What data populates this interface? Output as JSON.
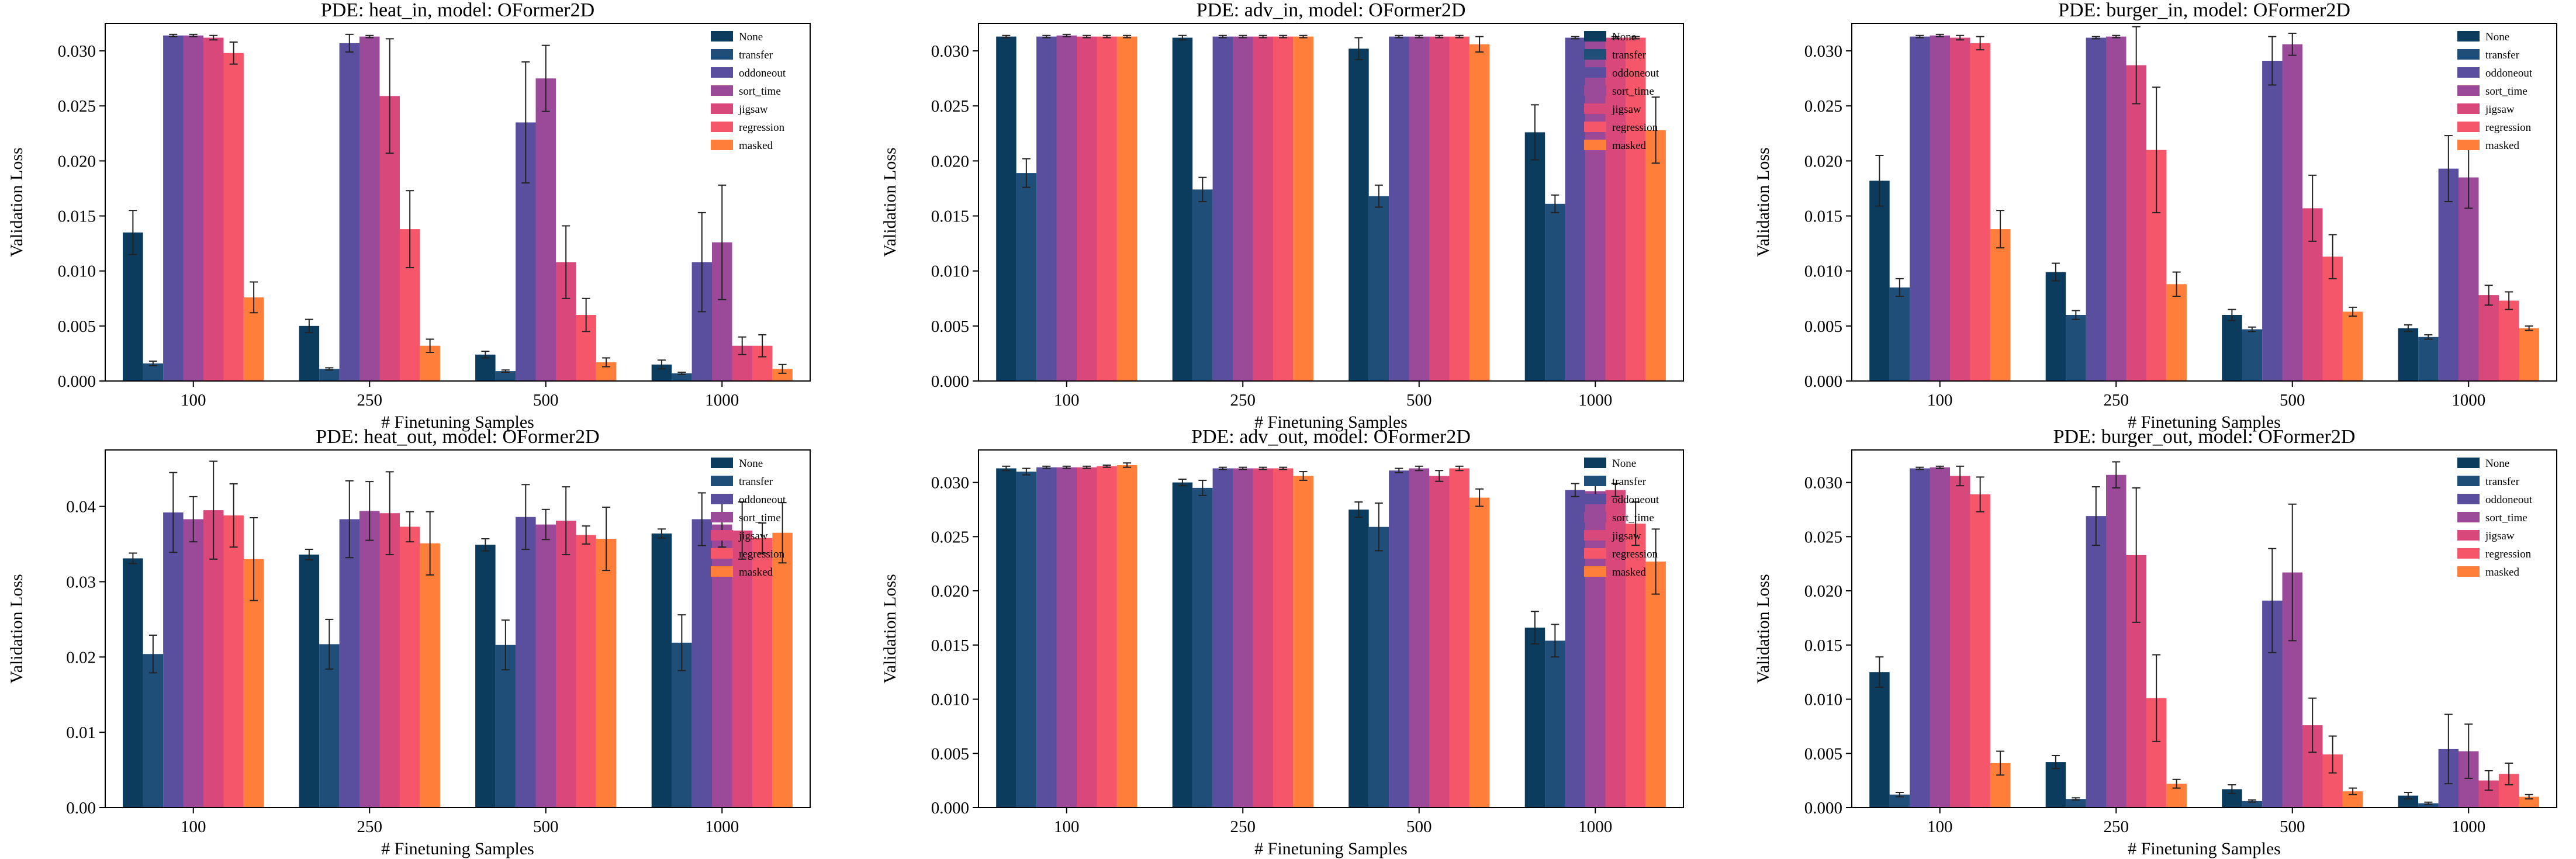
{
  "colors": {
    "None": "#0b3c5d",
    "transfer": "#1f4e79",
    "oddoneout": "#5a4f9e",
    "sort_time": "#9b4a9a",
    "jigsaw": "#d9487a",
    "regression": "#f6566a",
    "masked": "#ff7f3a"
  },
  "chart_data": [
    {
      "type": "bar",
      "title": "PDE: heat_in, model: OFormer2D",
      "xlabel": "# Finetuning Samples",
      "ylabel": "Validation Loss",
      "categories": [
        "100",
        "250",
        "500",
        "1000"
      ],
      "ylim": [
        0,
        0.0325
      ],
      "yticks": [
        "0.000",
        "0.005",
        "0.010",
        "0.015",
        "0.020",
        "0.025",
        "0.030"
      ],
      "legend_position": "top-right",
      "series": [
        {
          "name": "None",
          "values": [
            0.0135,
            0.005,
            0.0024,
            0.0015
          ],
          "errors": [
            0.002,
            0.0006,
            0.0003,
            0.0004
          ]
        },
        {
          "name": "transfer",
          "values": [
            0.0016,
            0.0011,
            0.0009,
            0.0007
          ],
          "errors": [
            0.0002,
            0.0001,
            0.0001,
            0.0001
          ]
        },
        {
          "name": "oddoneout",
          "values": [
            0.0314,
            0.0307,
            0.0235,
            0.0108
          ],
          "errors": [
            0.0001,
            0.0008,
            0.0055,
            0.0045
          ]
        },
        {
          "name": "sort_time",
          "values": [
            0.0314,
            0.0313,
            0.0275,
            0.0126
          ],
          "errors": [
            0.0001,
            0.0001,
            0.003,
            0.0052
          ]
        },
        {
          "name": "jigsaw",
          "values": [
            0.0312,
            0.0259,
            0.0108,
            0.0032
          ],
          "errors": [
            0.0002,
            0.0052,
            0.0033,
            0.0008
          ]
        },
        {
          "name": "regression",
          "values": [
            0.0298,
            0.0138,
            0.006,
            0.0032
          ],
          "errors": [
            0.001,
            0.0035,
            0.0015,
            0.001
          ]
        },
        {
          "name": "masked",
          "values": [
            0.0076,
            0.0032,
            0.0017,
            0.0011
          ],
          "errors": [
            0.0014,
            0.0006,
            0.0004,
            0.0004
          ]
        }
      ]
    },
    {
      "type": "bar",
      "title": "PDE: adv_in, model: OFormer2D",
      "xlabel": "# Finetuning Samples",
      "ylabel": "Validation Loss",
      "categories": [
        "100",
        "250",
        "500",
        "1000"
      ],
      "ylim": [
        0,
        0.0325
      ],
      "yticks": [
        "0.000",
        "0.005",
        "0.010",
        "0.015",
        "0.020",
        "0.025",
        "0.030"
      ],
      "legend_position": "top-right",
      "series": [
        {
          "name": "None",
          "values": [
            0.0313,
            0.0312,
            0.0302,
            0.0226
          ],
          "errors": [
            0.0001,
            0.0002,
            0.001,
            0.0025
          ]
        },
        {
          "name": "transfer",
          "values": [
            0.0189,
            0.0174,
            0.0168,
            0.0161
          ],
          "errors": [
            0.0013,
            0.0011,
            0.001,
            0.0008
          ]
        },
        {
          "name": "oddoneout",
          "values": [
            0.0313,
            0.0313,
            0.0313,
            0.0312
          ],
          "errors": [
            0.0001,
            0.0001,
            0.0001,
            0.0001
          ]
        },
        {
          "name": "sort_time",
          "values": [
            0.0314,
            0.0313,
            0.0313,
            0.0313
          ],
          "errors": [
            0.0001,
            0.0001,
            0.0001,
            0.0001
          ]
        },
        {
          "name": "jigsaw",
          "values": [
            0.0313,
            0.0313,
            0.0313,
            0.0312
          ],
          "errors": [
            0.0001,
            0.0001,
            0.0001,
            0.0001
          ]
        },
        {
          "name": "regression",
          "values": [
            0.0313,
            0.0313,
            0.0313,
            0.0312
          ],
          "errors": [
            0.0001,
            0.0001,
            0.0001,
            0.0001
          ]
        },
        {
          "name": "masked",
          "values": [
            0.0313,
            0.0313,
            0.0306,
            0.0228
          ],
          "errors": [
            0.0001,
            0.0001,
            0.0007,
            0.003
          ]
        }
      ]
    },
    {
      "type": "bar",
      "title": "PDE: burger_in, model: OFormer2D",
      "xlabel": "# Finetuning Samples",
      "ylabel": "Validation Loss",
      "categories": [
        "100",
        "250",
        "500",
        "1000"
      ],
      "ylim": [
        0,
        0.0325
      ],
      "yticks": [
        "0.000",
        "0.005",
        "0.010",
        "0.015",
        "0.020",
        "0.025",
        "0.030"
      ],
      "legend_position": "top-right",
      "series": [
        {
          "name": "None",
          "values": [
            0.0182,
            0.0099,
            0.006,
            0.0048
          ],
          "errors": [
            0.0023,
            0.0008,
            0.0005,
            0.0003
          ]
        },
        {
          "name": "transfer",
          "values": [
            0.0085,
            0.006,
            0.0047,
            0.004
          ],
          "errors": [
            0.0008,
            0.0004,
            0.0002,
            0.0002
          ]
        },
        {
          "name": "oddoneout",
          "values": [
            0.0313,
            0.0312,
            0.0291,
            0.0193
          ],
          "errors": [
            0.0001,
            0.0001,
            0.0022,
            0.003
          ]
        },
        {
          "name": "sort_time",
          "values": [
            0.0314,
            0.0313,
            0.0306,
            0.0185
          ],
          "errors": [
            0.0001,
            0.0001,
            0.001,
            0.0028
          ]
        },
        {
          "name": "jigsaw",
          "values": [
            0.0312,
            0.0287,
            0.0157,
            0.0078
          ],
          "errors": [
            0.0002,
            0.0035,
            0.003,
            0.0009
          ]
        },
        {
          "name": "regression",
          "values": [
            0.0307,
            0.021,
            0.0113,
            0.0073
          ],
          "errors": [
            0.0006,
            0.0057,
            0.002,
            0.0008
          ]
        },
        {
          "name": "masked",
          "values": [
            0.0138,
            0.0088,
            0.0063,
            0.0048
          ],
          "errors": [
            0.0017,
            0.0011,
            0.0004,
            0.0002
          ]
        }
      ]
    },
    {
      "type": "bar",
      "title": "PDE: heat_out, model: OFormer2D",
      "xlabel": "# Finetuning Samples",
      "ylabel": "Validation Loss",
      "categories": [
        "100",
        "250",
        "500",
        "1000"
      ],
      "ylim": [
        0,
        0.0475
      ],
      "yticks": [
        "0.00",
        "0.01",
        "0.02",
        "0.03",
        "0.04"
      ],
      "legend_position": "top-right",
      "series": [
        {
          "name": "None",
          "values": [
            0.0331,
            0.0336,
            0.0349,
            0.0364
          ],
          "errors": [
            0.0007,
            0.0007,
            0.0008,
            0.0006
          ]
        },
        {
          "name": "transfer",
          "values": [
            0.0204,
            0.0217,
            0.0216,
            0.0219
          ],
          "errors": [
            0.0025,
            0.0033,
            0.0033,
            0.0037
          ]
        },
        {
          "name": "oddoneout",
          "values": [
            0.0392,
            0.0383,
            0.0386,
            0.0383
          ],
          "errors": [
            0.0053,
            0.0051,
            0.0043,
            0.0035
          ]
        },
        {
          "name": "sort_time",
          "values": [
            0.0383,
            0.0394,
            0.0376,
            0.0376
          ],
          "errors": [
            0.003,
            0.0039,
            0.002,
            0.003
          ]
        },
        {
          "name": "jigsaw",
          "values": [
            0.0395,
            0.0391,
            0.0381,
            0.0368
          ],
          "errors": [
            0.0065,
            0.0055,
            0.0045,
            0.0038
          ]
        },
        {
          "name": "regression",
          "values": [
            0.0388,
            0.0373,
            0.0362,
            0.0358
          ],
          "errors": [
            0.0042,
            0.002,
            0.0012,
            0.002
          ]
        },
        {
          "name": "masked",
          "values": [
            0.033,
            0.0351,
            0.0357,
            0.0365
          ],
          "errors": [
            0.0055,
            0.0042,
            0.0042,
            0.004
          ]
        }
      ]
    },
    {
      "type": "bar",
      "title": "PDE: adv_out, model: OFormer2D",
      "xlabel": "# Finetuning Samples",
      "ylabel": "Validation Loss",
      "categories": [
        "100",
        "250",
        "500",
        "1000"
      ],
      "ylim": [
        0,
        0.033
      ],
      "yticks": [
        "0.000",
        "0.005",
        "0.010",
        "0.015",
        "0.020",
        "0.025",
        "0.030"
      ],
      "legend_position": "top-right",
      "series": [
        {
          "name": "None",
          "values": [
            0.0313,
            0.03,
            0.0275,
            0.0166
          ],
          "errors": [
            0.0002,
            0.0003,
            0.0007,
            0.0015
          ]
        },
        {
          "name": "transfer",
          "values": [
            0.031,
            0.0295,
            0.0259,
            0.0154
          ],
          "errors": [
            0.0003,
            0.0007,
            0.0022,
            0.0015
          ]
        },
        {
          "name": "oddoneout",
          "values": [
            0.0314,
            0.0313,
            0.0311,
            0.0293
          ],
          "errors": [
            0.0001,
            0.0001,
            0.0002,
            0.0006
          ]
        },
        {
          "name": "sort_time",
          "values": [
            0.0314,
            0.0313,
            0.0313,
            0.0292
          ],
          "errors": [
            0.0001,
            0.0001,
            0.0002,
            0.0006
          ]
        },
        {
          "name": "jigsaw",
          "values": [
            0.0314,
            0.0313,
            0.0306,
            0.0293
          ],
          "errors": [
            0.0001,
            0.0001,
            0.0005,
            0.0006
          ]
        },
        {
          "name": "regression",
          "values": [
            0.0315,
            0.0313,
            0.0313,
            0.0262
          ],
          "errors": [
            0.0001,
            0.0001,
            0.0002,
            0.002
          ]
        },
        {
          "name": "masked",
          "values": [
            0.0316,
            0.0306,
            0.0286,
            0.0227
          ],
          "errors": [
            0.0002,
            0.0004,
            0.0008,
            0.003
          ]
        }
      ]
    },
    {
      "type": "bar",
      "title": "PDE: burger_out, model: OFormer2D",
      "xlabel": "# Finetuning Samples",
      "ylabel": "Validation Loss",
      "categories": [
        "100",
        "250",
        "500",
        "1000"
      ],
      "ylim": [
        0,
        0.033
      ],
      "yticks": [
        "0.000",
        "0.005",
        "0.010",
        "0.015",
        "0.020",
        "0.025",
        "0.030"
      ],
      "legend_position": "top-right",
      "series": [
        {
          "name": "None",
          "values": [
            0.0125,
            0.0042,
            0.0017,
            0.0011
          ],
          "errors": [
            0.0014,
            0.0006,
            0.0004,
            0.0003
          ]
        },
        {
          "name": "transfer",
          "values": [
            0.0012,
            0.0008,
            0.0006,
            0.0004
          ],
          "errors": [
            0.0002,
            0.0001,
            0.0001,
            0.0001
          ]
        },
        {
          "name": "oddoneout",
          "values": [
            0.0313,
            0.0269,
            0.0191,
            0.0054
          ],
          "errors": [
            0.0001,
            0.0027,
            0.0048,
            0.0032
          ]
        },
        {
          "name": "sort_time",
          "values": [
            0.0314,
            0.0307,
            0.0217,
            0.0052
          ],
          "errors": [
            0.0001,
            0.0012,
            0.0063,
            0.0025
          ]
        },
        {
          "name": "jigsaw",
          "values": [
            0.0306,
            0.0233,
            0.0076,
            0.0025
          ],
          "errors": [
            0.0009,
            0.0062,
            0.0025,
            0.0009
          ]
        },
        {
          "name": "regression",
          "values": [
            0.0289,
            0.0101,
            0.0049,
            0.0031
          ],
          "errors": [
            0.0016,
            0.004,
            0.0017,
            0.001
          ]
        },
        {
          "name": "masked",
          "values": [
            0.0041,
            0.0022,
            0.0015,
            0.001
          ],
          "errors": [
            0.0011,
            0.0004,
            0.0003,
            0.0002
          ]
        }
      ]
    }
  ]
}
